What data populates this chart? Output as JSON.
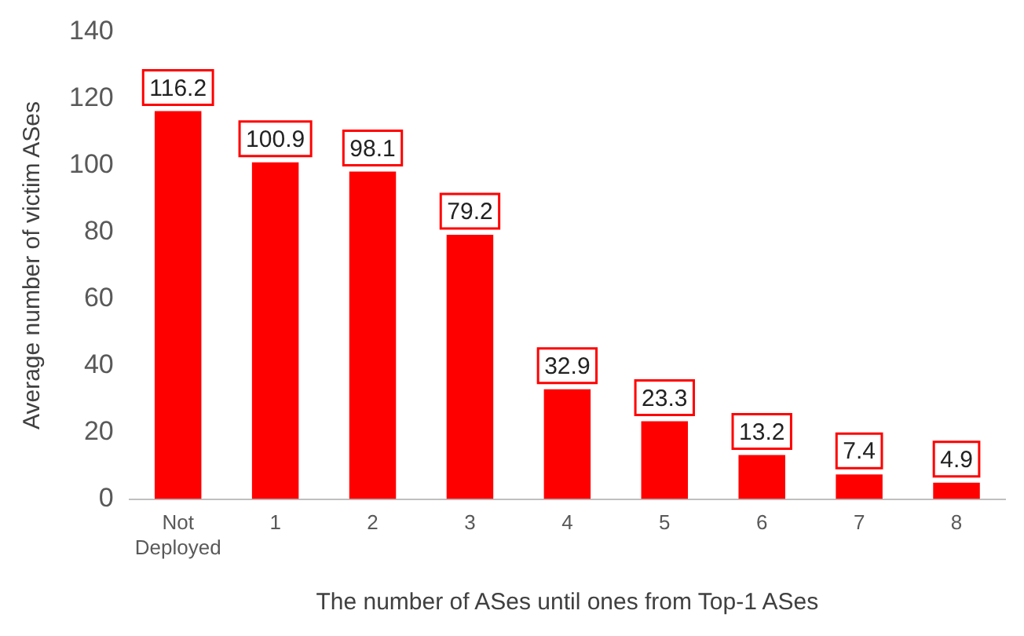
{
  "chart_data": {
    "type": "bar",
    "xlabel": "The number of ASes until ones from Top-1 ASes",
    "ylabel": "Average number of victim ASes",
    "categories": [
      "Not Deployed",
      "1",
      "2",
      "3",
      "4",
      "5",
      "6",
      "7",
      "8"
    ],
    "values": [
      116.2,
      100.9,
      98.1,
      79.2,
      32.9,
      23.3,
      13.2,
      7.4,
      4.9
    ],
    "color": "#ff0000",
    "ylim": [
      0,
      140
    ],
    "yticks": [
      0,
      20,
      40,
      60,
      80,
      100,
      120,
      140
    ],
    "grid": false,
    "legend": false,
    "data_labels": true
  }
}
